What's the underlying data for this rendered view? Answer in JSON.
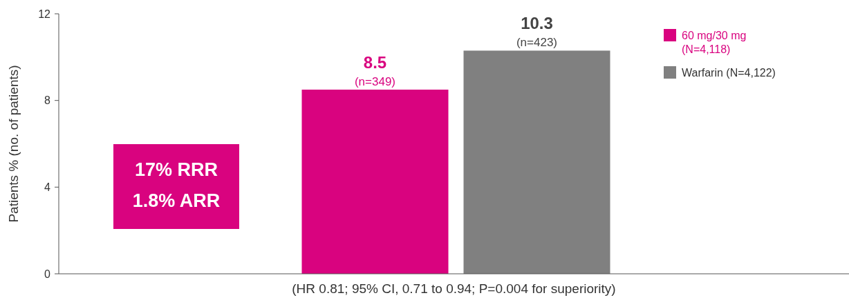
{
  "chart_data": {
    "type": "bar",
    "categories": [
      null
    ],
    "series": [
      {
        "name": "60 mg/30 mg (N=4,118)",
        "color": "#d9037f",
        "values": [
          8.5
        ],
        "value_labels": [
          "8.5\n(n=349)"
        ]
      },
      {
        "name": "Warfarin (N=4,122)",
        "color": "#808080",
        "values": [
          10.3
        ],
        "value_labels": [
          "10.3\n(n=423)"
        ]
      }
    ],
    "ylabel": "Patients % (no. of patients)",
    "xlabel": "(HR 0.81; 95% CI, 0.71 to 0.94; P=0.004 for superiority)",
    "ylim": [
      0,
      12
    ],
    "yticks": [
      0,
      4,
      8,
      12
    ],
    "grid": false,
    "legend": "top right",
    "annotations": [
      "17% RRR\n1.8% ARR"
    ]
  }
}
